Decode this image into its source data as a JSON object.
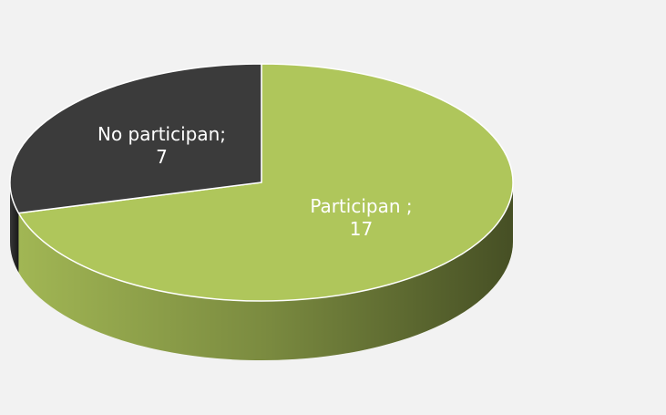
{
  "chart_data": {
    "type": "pie3d",
    "categories": [
      "Participan ;",
      "No participan;"
    ],
    "values": [
      17,
      7
    ],
    "colors": [
      "#afc65b",
      "#3b3b3b"
    ]
  }
}
